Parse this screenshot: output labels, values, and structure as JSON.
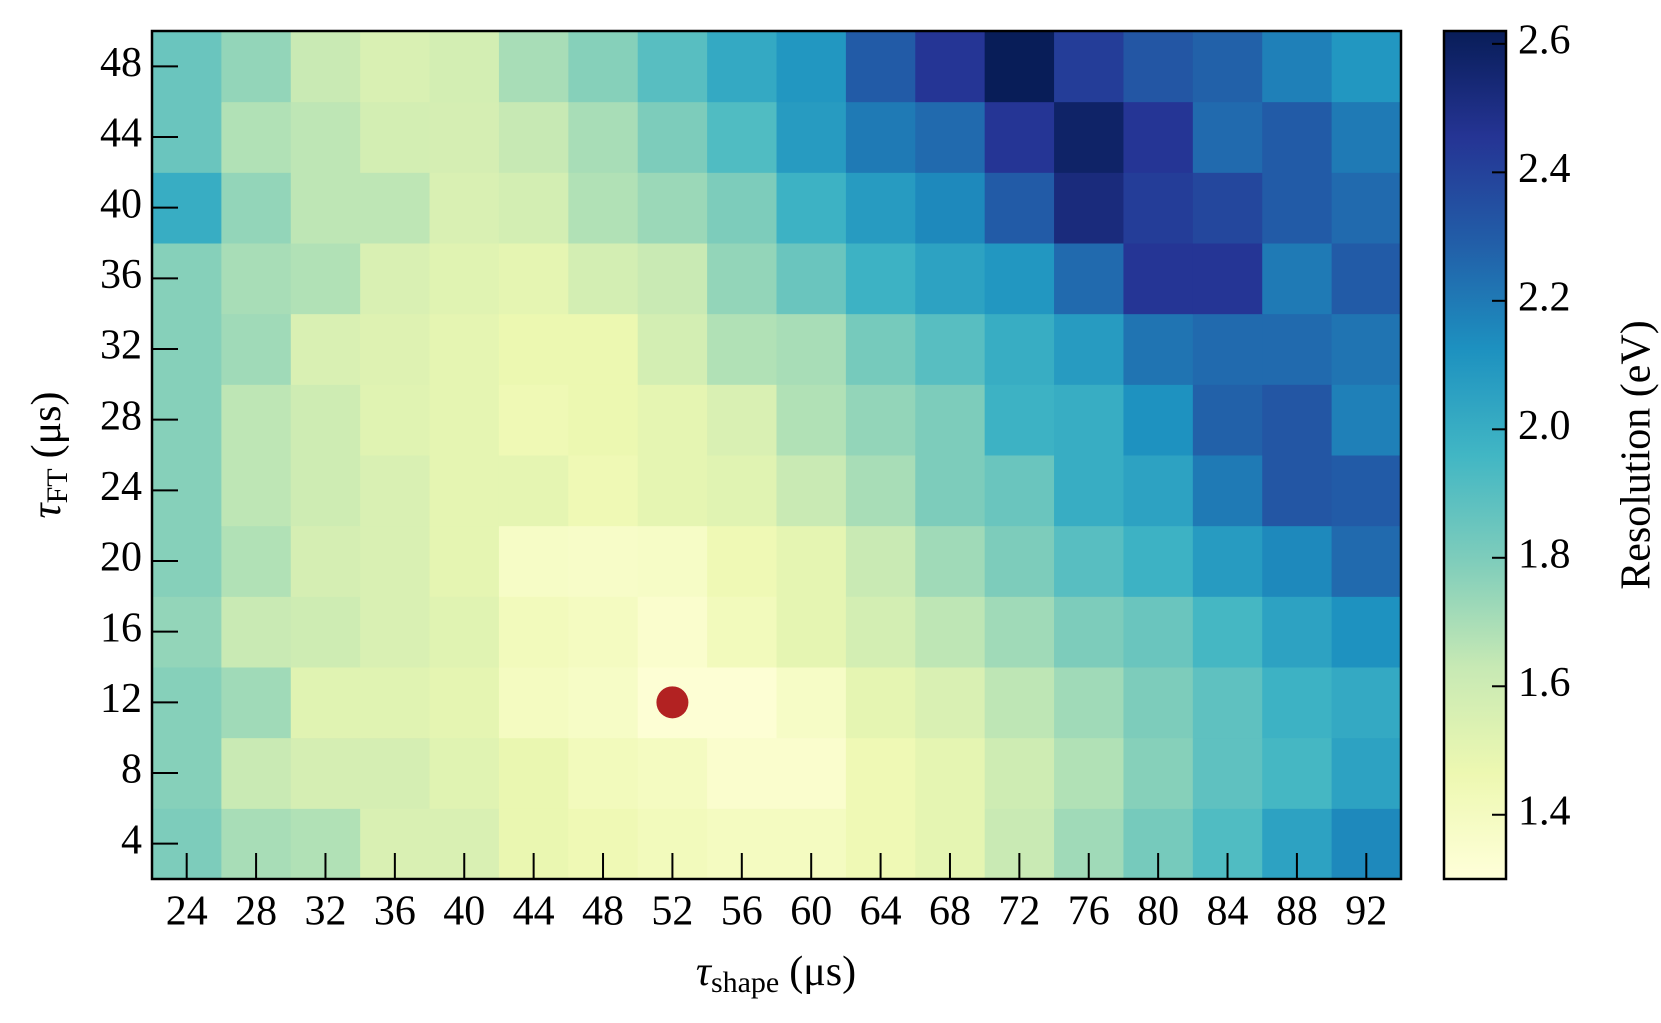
{
  "chart_data": {
    "type": "heatmap",
    "x": [
      24,
      28,
      32,
      36,
      40,
      44,
      48,
      52,
      56,
      60,
      64,
      68,
      72,
      76,
      80,
      84,
      88,
      92
    ],
    "y": [
      4,
      8,
      12,
      16,
      20,
      24,
      28,
      32,
      36,
      40,
      44,
      48
    ],
    "values": [
      [
        1.8,
        1.7,
        1.68,
        1.55,
        1.55,
        1.48,
        1.45,
        1.42,
        1.4,
        1.4,
        1.45,
        1.5,
        1.62,
        1.72,
        1.82,
        1.92,
        2.05,
        2.15
      ],
      [
        1.78,
        1.62,
        1.57,
        1.57,
        1.52,
        1.48,
        1.42,
        1.4,
        1.35,
        1.35,
        1.45,
        1.5,
        1.6,
        1.68,
        1.78,
        1.88,
        1.95,
        2.05
      ],
      [
        1.78,
        1.72,
        1.52,
        1.52,
        1.5,
        1.4,
        1.38,
        1.32,
        1.32,
        1.38,
        1.5,
        1.55,
        1.65,
        1.72,
        1.8,
        1.88,
        1.98,
        2.02
      ],
      [
        1.75,
        1.62,
        1.6,
        1.55,
        1.52,
        1.42,
        1.4,
        1.35,
        1.42,
        1.5,
        1.58,
        1.65,
        1.72,
        1.8,
        1.85,
        1.95,
        2.05,
        2.12
      ],
      [
        1.78,
        1.68,
        1.57,
        1.55,
        1.5,
        1.38,
        1.37,
        1.38,
        1.45,
        1.5,
        1.62,
        1.72,
        1.8,
        1.9,
        1.98,
        2.08,
        2.15,
        2.25
      ],
      [
        1.78,
        1.65,
        1.6,
        1.55,
        1.5,
        1.5,
        1.45,
        1.5,
        1.52,
        1.62,
        1.7,
        1.8,
        1.85,
        2.0,
        2.05,
        2.2,
        2.32,
        2.3
      ],
      [
        1.78,
        1.65,
        1.6,
        1.52,
        1.5,
        1.45,
        1.47,
        1.5,
        1.55,
        1.68,
        1.75,
        1.8,
        1.98,
        2.0,
        2.12,
        2.28,
        2.32,
        2.18
      ],
      [
        1.78,
        1.72,
        1.55,
        1.53,
        1.5,
        1.47,
        1.47,
        1.58,
        1.68,
        1.7,
        1.82,
        1.9,
        2.0,
        2.08,
        2.22,
        2.25,
        2.25,
        2.22
      ],
      [
        1.78,
        1.7,
        1.68,
        1.55,
        1.52,
        1.5,
        1.58,
        1.62,
        1.75,
        1.85,
        1.98,
        2.05,
        2.1,
        2.25,
        2.45,
        2.45,
        2.2,
        2.3
      ],
      [
        2.0,
        1.75,
        1.65,
        1.65,
        1.55,
        1.58,
        1.68,
        1.73,
        1.8,
        1.98,
        2.08,
        2.15,
        2.3,
        2.52,
        2.42,
        2.38,
        2.3,
        2.25
      ],
      [
        1.85,
        1.68,
        1.65,
        1.58,
        1.57,
        1.63,
        1.7,
        1.8,
        1.92,
        2.08,
        2.2,
        2.25,
        2.45,
        2.58,
        2.45,
        2.25,
        2.3,
        2.2
      ],
      [
        1.85,
        1.75,
        1.62,
        1.55,
        1.58,
        1.7,
        1.78,
        1.9,
        2.02,
        2.1,
        2.3,
        2.45,
        2.62,
        2.42,
        2.32,
        2.28,
        2.18,
        2.1
      ]
    ],
    "xlim": [
      22,
      94
    ],
    "ylim": [
      2,
      50
    ],
    "xticks": [
      24,
      28,
      32,
      36,
      40,
      44,
      48,
      52,
      56,
      60,
      64,
      68,
      72,
      76,
      80,
      84,
      88,
      92
    ],
    "yticks": [
      4,
      8,
      12,
      16,
      20,
      24,
      28,
      32,
      36,
      40,
      44,
      48
    ],
    "xlabel": {
      "symbol": "τ",
      "sub": "shape",
      "unit": "(μs)"
    },
    "ylabel": {
      "symbol": "τ",
      "sub": "FT",
      "unit": "(μs)"
    },
    "colorbar_label": "Resolution (eV)",
    "zlim": [
      1.3,
      2.62
    ],
    "zticks": [
      {
        "value": 1.4,
        "label": "1.4"
      },
      {
        "value": 1.6,
        "label": "1.6"
      },
      {
        "value": 1.8,
        "label": "1.8"
      },
      {
        "value": 2.0,
        "label": "2.0"
      },
      {
        "value": 2.2,
        "label": "2.2"
      },
      {
        "value": 2.4,
        "label": "2.4"
      },
      {
        "value": 2.6,
        "label": "2.6"
      }
    ],
    "colormap": [
      "#ffffd9",
      "#edf8b1",
      "#c7e9b4",
      "#7fcdbb",
      "#41b6c4",
      "#1d91c0",
      "#225ea8",
      "#253494",
      "#081d58"
    ],
    "highlight": {
      "x": 52,
      "y": 12,
      "color": "#b22222"
    }
  }
}
